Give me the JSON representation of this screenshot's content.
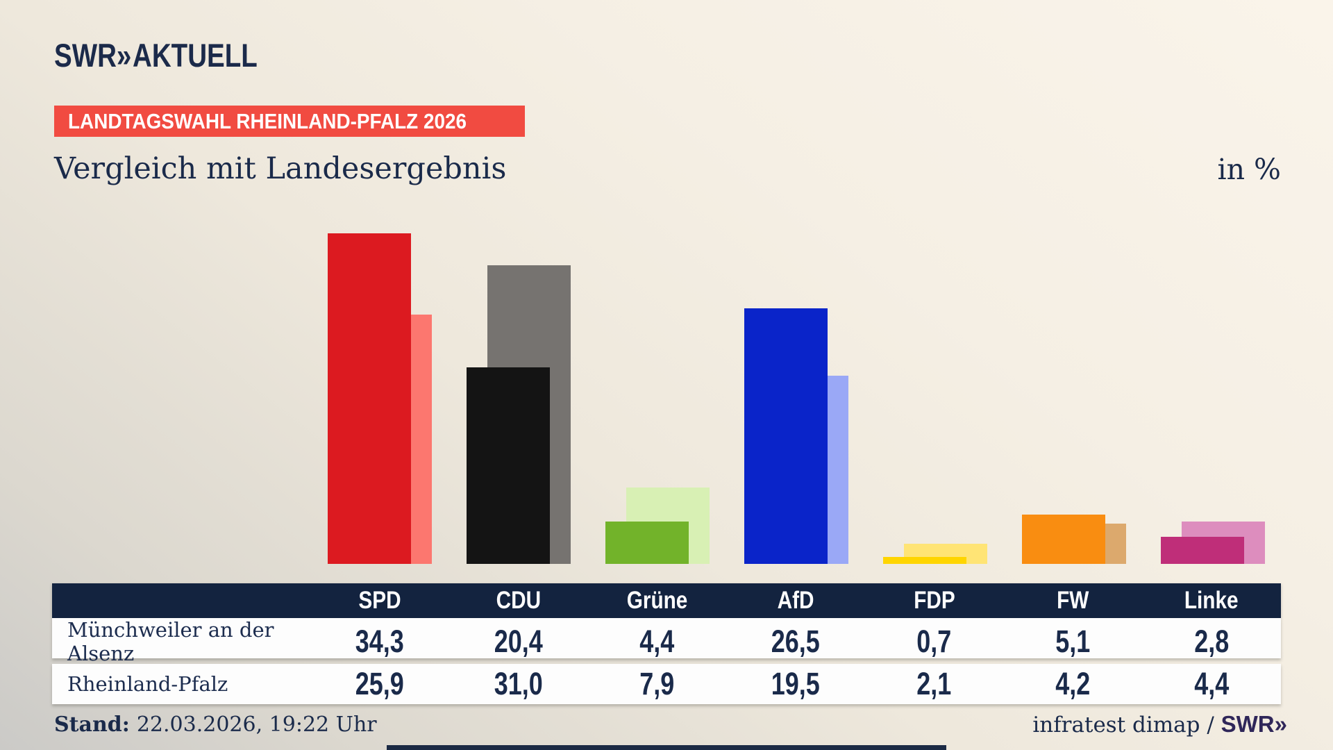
{
  "brand": {
    "logo_text": "SWR",
    "logo_chevrons": "»",
    "logo_suffix": "AKTUELL",
    "footer_mark_text": "SWR",
    "footer_mark_chevrons": "»"
  },
  "badge": {
    "text": "LANDTAGSWAHL RHEINLAND-PFALZ 2026",
    "bg_color": "#f14b41"
  },
  "title": "Vergleich mit Landesergebnis",
  "unit_label": "in %",
  "footer": {
    "stand_label": "Stand:",
    "stand_value": "22.03.2026, 19:22 Uhr",
    "source_text": "infratest dimap / "
  },
  "colors": {
    "text_navy": "#1a2a4a",
    "table_header_bg": "#13233f",
    "row_bg": "#fdfdfd"
  },
  "chart_data": {
    "type": "bar",
    "title": "Vergleich mit Landesergebnis",
    "ylabel": "in %",
    "grid": false,
    "legend_position": "table-rows",
    "categories": [
      "SPD",
      "CDU",
      "Grüne",
      "AfD",
      "FDP",
      "FW",
      "Linke"
    ],
    "series": [
      {
        "name": "Münchweiler an der Alsenz",
        "role": "municipality-foreground-bars",
        "values": [
          34.3,
          20.4,
          4.4,
          26.5,
          0.7,
          5.1,
          2.8
        ],
        "labels": [
          "34,3",
          "20,4",
          "4,4",
          "26,5",
          "0,7",
          "5,1",
          "2,8"
        ],
        "colors": [
          "#dc1a20",
          "#141414",
          "#72b32a",
          "#0a24c9",
          "#ffd500",
          "#f98d11",
          "#bf2e79"
        ]
      },
      {
        "name": "Rheinland-Pfalz",
        "role": "state-background-bars",
        "values": [
          25.9,
          31.0,
          7.9,
          19.5,
          2.1,
          4.2,
          4.4
        ],
        "labels": [
          "25,9",
          "31,0",
          "7,9",
          "19,5",
          "2,1",
          "4,2",
          "4,4"
        ],
        "colors": [
          "#fc776f",
          "#767370",
          "#d8f0b4",
          "#9aa8f6",
          "#ffe475",
          "#dca96d",
          "#dd8dbe"
        ]
      }
    ],
    "ylim": [
      0,
      39
    ]
  }
}
